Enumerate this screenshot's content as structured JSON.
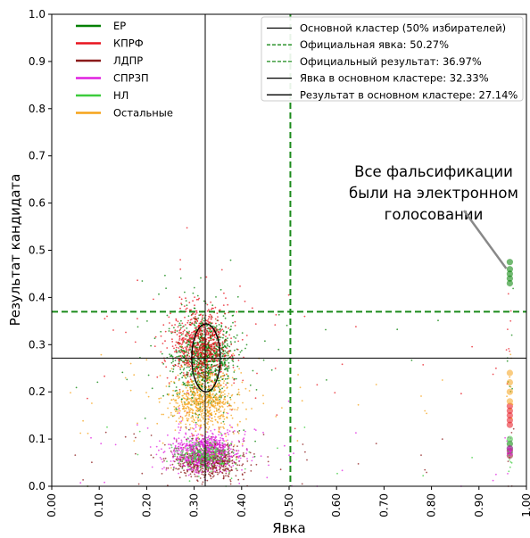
{
  "chart_data": {
    "type": "scatter",
    "xlabel": "Явка",
    "ylabel": "Результат кандидата",
    "xlim": [
      0,
      1
    ],
    "ylim": [
      0,
      1
    ],
    "xticks": [
      "0.00",
      "0.10",
      "0.20",
      "0.30",
      "0.40",
      "0.50",
      "0.60",
      "0.70",
      "0.80",
      "0.90",
      "1.00"
    ],
    "yticks": [
      "0.0",
      "0.1",
      "0.2",
      "0.3",
      "0.4",
      "0.5",
      "0.6",
      "0.7",
      "0.8",
      "0.9",
      "1.0"
    ],
    "grid": false,
    "series": [
      {
        "name": "ЕР",
        "color": "#008000",
        "center": [
          0.32,
          0.27
        ],
        "spread": [
          0.03,
          0.045
        ],
        "count": 1000,
        "evoting": [
          [
            0.965,
            0.475
          ],
          [
            0.965,
            0.46
          ],
          [
            0.965,
            0.45
          ],
          [
            0.965,
            0.44
          ],
          [
            0.965,
            0.43
          ],
          [
            0.965,
            0.09
          ],
          [
            0.965,
            0.08
          ]
        ]
      },
      {
        "name": "КПРФ",
        "color": "#e8141e",
        "center": [
          0.315,
          0.3
        ],
        "spread": [
          0.03,
          0.04
        ],
        "count": 800,
        "evoting": [
          [
            0.965,
            0.17
          ],
          [
            0.965,
            0.16
          ],
          [
            0.965,
            0.15
          ],
          [
            0.965,
            0.14
          ],
          [
            0.965,
            0.13
          ]
        ]
      },
      {
        "name": "ЛДПР",
        "color": "#8b1a1a",
        "center": [
          0.33,
          0.055
        ],
        "spread": [
          0.032,
          0.018
        ],
        "count": 700,
        "evoting": [
          [
            0.965,
            0.075
          ],
          [
            0.965,
            0.065
          ]
        ]
      },
      {
        "name": "СПРЗП",
        "color": "#e020e0",
        "center": [
          0.32,
          0.075
        ],
        "spread": [
          0.035,
          0.02
        ],
        "count": 700,
        "evoting": [
          [
            0.965,
            0.08
          ],
          [
            0.965,
            0.07
          ]
        ]
      },
      {
        "name": "НЛ",
        "color": "#3ccc3c",
        "center": [
          0.32,
          0.065
        ],
        "spread": [
          0.03,
          0.015
        ],
        "count": 250,
        "evoting": [
          [
            0.965,
            0.1
          ]
        ]
      },
      {
        "name": "Остальные",
        "color": "#f5a31a",
        "center": [
          0.32,
          0.18
        ],
        "spread": [
          0.032,
          0.03
        ],
        "count": 700,
        "evoting": [
          [
            0.965,
            0.24
          ],
          [
            0.965,
            0.22
          ],
          [
            0.965,
            0.2
          ],
          [
            0.965,
            0.18
          ]
        ]
      }
    ],
    "ellipse": {
      "cx": 0.325,
      "cy": 0.272,
      "rx": 0.03,
      "ry": 0.072
    },
    "lines": [
      {
        "label": "Основной кластер (50% избирателей)",
        "style": "solid",
        "color": "#000000"
      },
      {
        "label": "Официальная явка: 50.27%",
        "style": "dashed",
        "color": "#1a8a1a",
        "orientation": "vertical",
        "value": 0.5027
      },
      {
        "label": "Официальный результат: 36.97%",
        "style": "dashed",
        "color": "#1a8a1a",
        "orientation": "horizontal",
        "value": 0.3697
      },
      {
        "label": "Явка в основном кластере: 32.33%",
        "style": "solid",
        "color": "#000000",
        "orientation": "vertical",
        "value": 0.3233
      },
      {
        "label": "Результат в основном кластере: 27.14%",
        "style": "solid",
        "color": "#000000",
        "orientation": "horizontal",
        "value": 0.2714
      }
    ],
    "annotation": {
      "lines": [
        "Все фальсификации",
        "были на электронном",
        "голосовании"
      ],
      "arrow_to": [
        0.965,
        0.45
      ]
    }
  }
}
